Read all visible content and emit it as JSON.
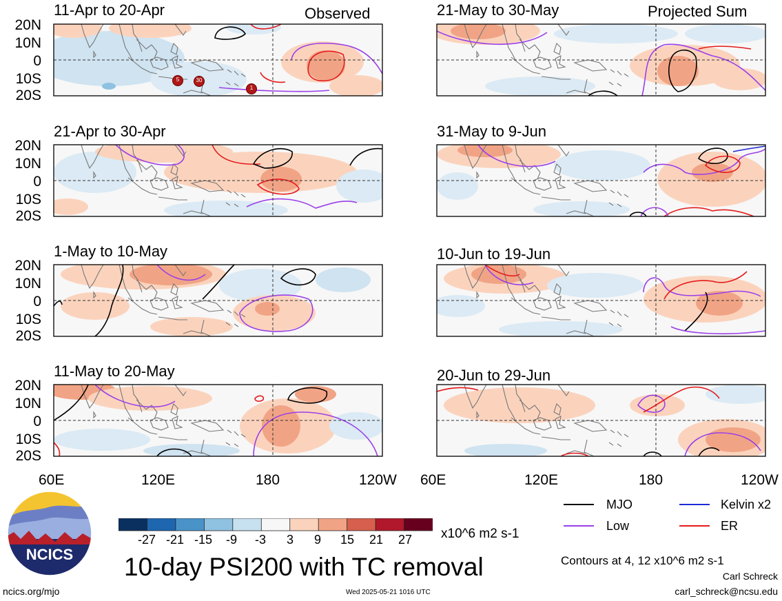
{
  "header": {
    "left_title": "Observed",
    "right_title": "Projected Sum"
  },
  "panels": [
    {
      "period": "11-Apr to 20-Apr"
    },
    {
      "period": "21-Apr to 30-Apr"
    },
    {
      "period": "1-May to 10-May"
    },
    {
      "period": "11-May to 20-May"
    },
    {
      "period": "21-May to 30-May"
    },
    {
      "period": "31-May to 9-Jun"
    },
    {
      "period": "10-Jun to 19-Jun"
    },
    {
      "period": "20-Jun to 29-Jun"
    }
  ],
  "lat_labels": [
    "20N",
    "10N",
    "0",
    "10S",
    "20S"
  ],
  "lon_labels": [
    "60E",
    "120E",
    "180",
    "120W"
  ],
  "tc_markers": [
    "5",
    "30",
    "1"
  ],
  "colorbar": {
    "ticks": [
      "-27",
      "-21",
      "-15",
      "-9",
      "-3",
      "3",
      "9",
      "15",
      "21",
      "27"
    ],
    "units": "x10^6 m2 s-1",
    "colors": [
      "#0a3060",
      "#1f66b0",
      "#4a93c9",
      "#8fc2e0",
      "#c8e1f0",
      "#f7f7f7",
      "#fbd3bd",
      "#f1a485",
      "#d6604d",
      "#b2182b",
      "#67001f"
    ]
  },
  "legend": {
    "items": [
      {
        "label": "MJO",
        "color": "#000000"
      },
      {
        "label": "Kelvin x2",
        "color": "#1f2ad6"
      },
      {
        "label": "Low",
        "color": "#9a3fe8"
      },
      {
        "label": "ER",
        "color": "#e41a1c"
      }
    ],
    "contours": "Contours at 4, 12 x10^6 m2 s-1"
  },
  "footer": {
    "title": "10-day PSI200 with TC removal",
    "logo_text": "NCICS",
    "url": "ncics.org/mjo",
    "timestamp": "Wed 2025-05-21 1016 UTC",
    "author": "Carl Schreck",
    "email": "carl_schreck@ncsu.edu"
  }
}
